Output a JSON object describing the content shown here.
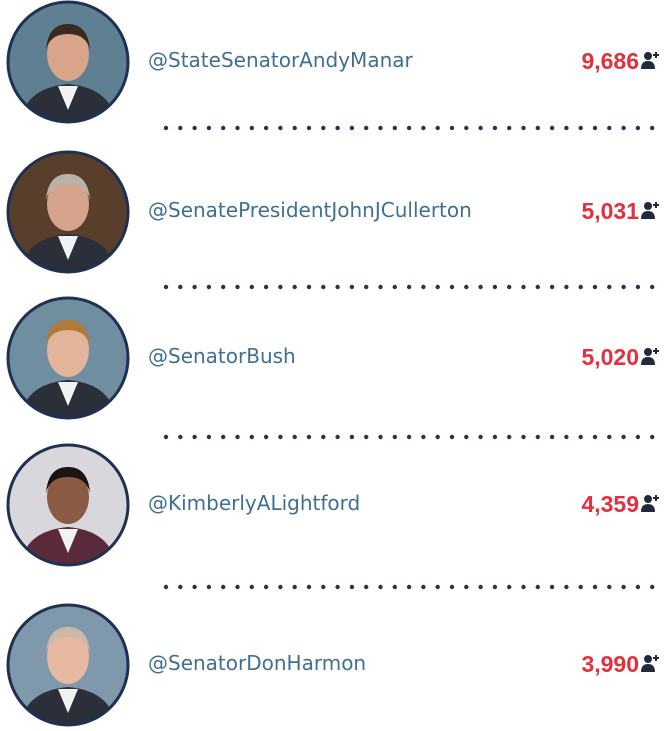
{
  "accounts": [
    {
      "handle": "@StateSenatorAndyManar",
      "followers": "9,686"
    },
    {
      "handle": "@SenatePresidentJohnJCullerton",
      "followers": "5,031"
    },
    {
      "handle": "@SenatorBush",
      "followers": "5,020"
    },
    {
      "handle": "@KimberlyALightford",
      "followers": "4,359"
    },
    {
      "handle": "@SenatorDonHarmon",
      "followers": "3,990"
    }
  ]
}
